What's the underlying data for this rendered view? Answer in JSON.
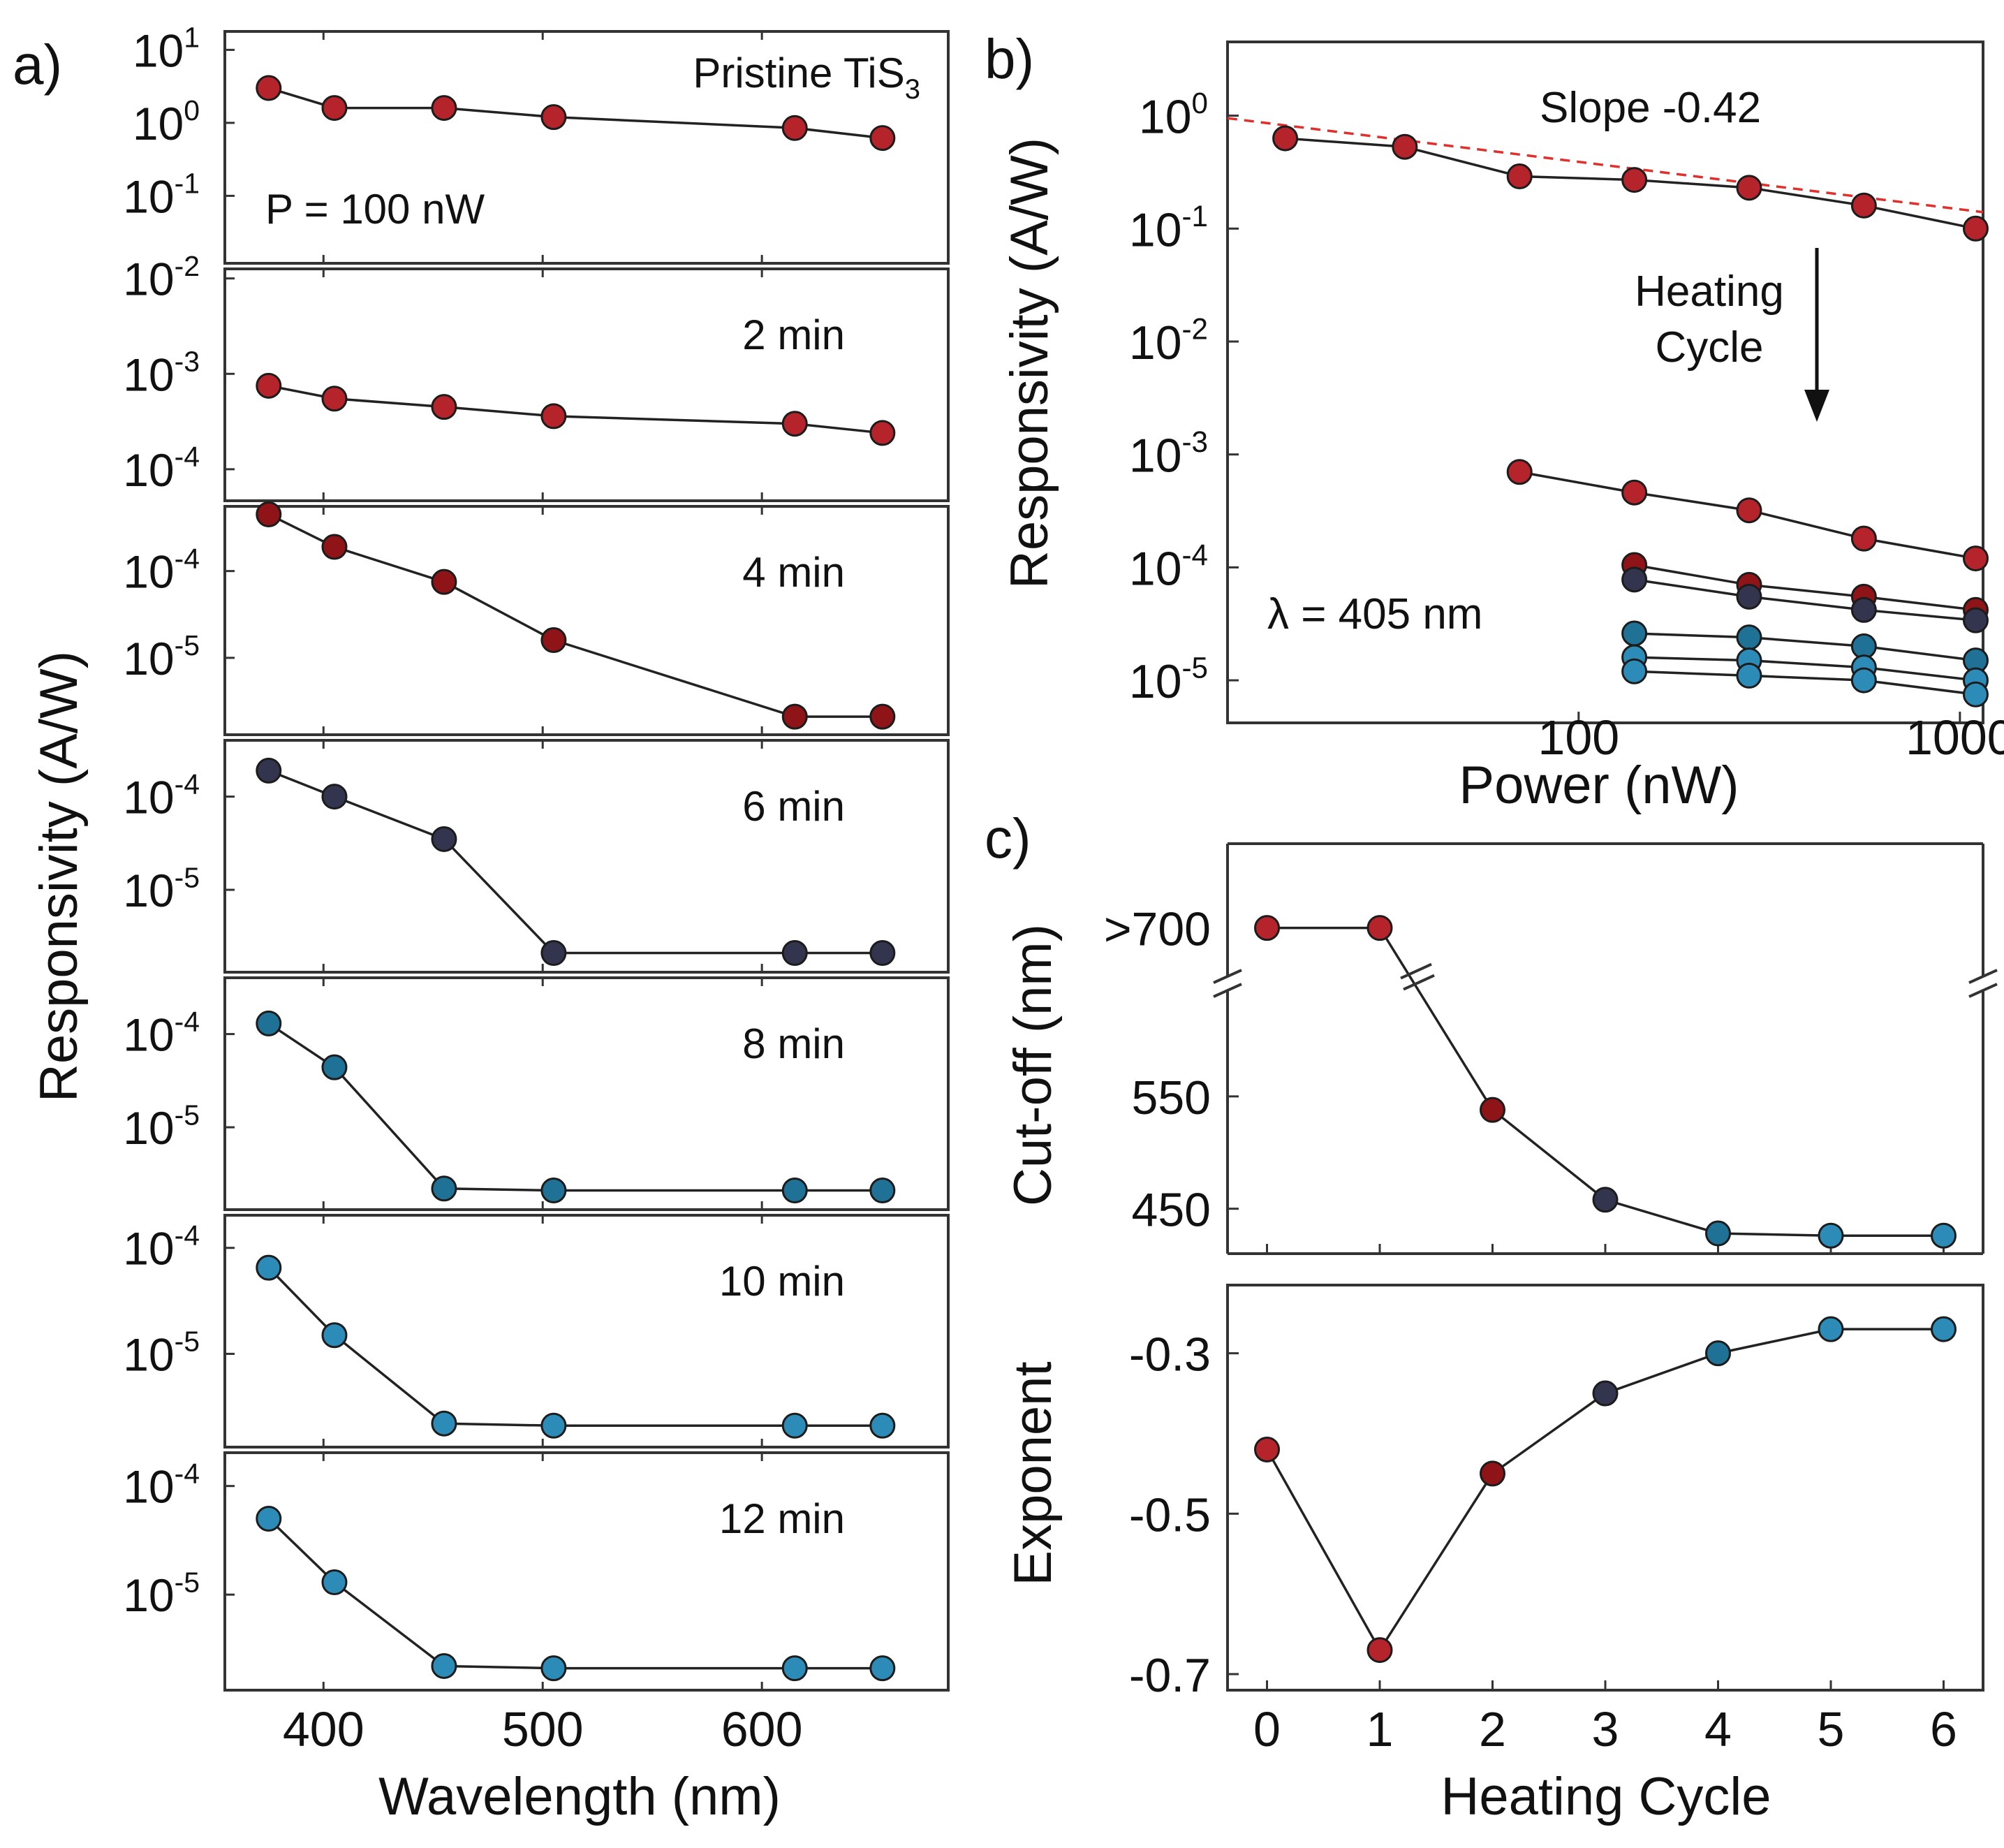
{
  "panel_labels": {
    "a": "a)",
    "b": "b)",
    "c": "c)"
  },
  "colors": {
    "red": "#b5232b",
    "darkred": "#8e1418",
    "navy": "#33344d",
    "teal": "#1f7296",
    "blue": "#2c8bb7",
    "line": "#222222",
    "fit": "#e0302c"
  },
  "chart_data": [
    {
      "id": "a",
      "type": "line",
      "xscale": "linear",
      "yscale": "log",
      "xlim": [
        355,
        685
      ],
      "xticks": [
        400,
        500,
        600
      ],
      "xtick_labels": [
        "400",
        "500",
        "600"
      ],
      "xlabel": "Wavelength (nm)",
      "ylabel": "Responsivity (A/W)",
      "x": [
        375,
        405,
        455,
        505,
        615,
        655
      ],
      "subplots": [
        {
          "label": "Pristine TiS",
          "label_sub": "3",
          "note": "P = 100 nW",
          "color": "red",
          "ylim": [
            0.013,
            15
          ],
          "ytick_values": [
            10,
            1,
            0.1
          ],
          "ytick_base": [
            "10",
            "10",
            "10"
          ],
          "ytick_exp": [
            "1",
            "0",
            "-1"
          ],
          "y": [
            3.0,
            1.6,
            1.6,
            1.2,
            0.85,
            0.62
          ]
        },
        {
          "label": "2 min",
          "color": "red",
          "ylim": [
            5e-05,
            0.011
          ],
          "ytick_values": [
            0.01,
            0.001,
            0.0001
          ],
          "ytick_base": [
            "10",
            "10",
            "10"
          ],
          "ytick_exp": [
            "-2",
            "-3",
            "-4"
          ],
          "y": [
            0.00075,
            0.00055,
            0.00045,
            0.00036,
            0.0003,
            0.00024
          ]
        },
        {
          "label": "4 min",
          "color": "darkred",
          "ylim": [
            1.4e-06,
            0.00048
          ],
          "ytick_values": [
            0.0001,
            1e-05
          ],
          "ytick_base": [
            "10",
            "10"
          ],
          "ytick_exp": [
            "-4",
            "-5"
          ],
          "y": [
            0.00045,
            0.00019,
            7.5e-05,
            1.6e-05,
            2.1e-06,
            2.1e-06
          ]
        },
        {
          "label": "6 min",
          "color": "navy",
          "ylim": [
            1.4e-06,
            0.00035
          ],
          "ytick_values": [
            0.0001,
            1e-05
          ],
          "ytick_base": [
            "10",
            "10"
          ],
          "ytick_exp": [
            "-4",
            "-5"
          ],
          "y": [
            0.00019,
            0.0001,
            3.5e-05,
            2.1e-06,
            2.1e-06,
            2.1e-06
          ]
        },
        {
          "label": "8 min",
          "color": "teal",
          "ylim": [
            1.4e-06,
            0.00035
          ],
          "ytick_values": [
            0.0001,
            1e-05
          ],
          "ytick_base": [
            "10",
            "10"
          ],
          "ytick_exp": [
            "-4",
            "-5"
          ],
          "y": [
            0.00013,
            4.4e-05,
            2.2e-06,
            2.1e-06,
            2.1e-06,
            2.1e-06
          ]
        },
        {
          "label": "10 min",
          "color": "blue",
          "ylim": [
            1.4e-06,
            0.00018
          ],
          "ytick_values": [
            0.0001,
            1e-05
          ],
          "ytick_base": [
            "10",
            "10"
          ],
          "ytick_exp": [
            "-4",
            "-5"
          ],
          "y": [
            6.5e-05,
            1.5e-05,
            2.2e-06,
            2.1e-06,
            2.1e-06,
            2.1e-06
          ]
        },
        {
          "label": "12 min",
          "color": "blue",
          "ylim": [
            1.4e-06,
            0.00018
          ],
          "ytick_values": [
            0.0001,
            1e-05
          ],
          "ytick_base": [
            "10",
            "10"
          ],
          "ytick_exp": [
            "-4",
            "-5"
          ],
          "y": [
            5e-05,
            1.3e-05,
            2.2e-06,
            2.1e-06,
            2.1e-06,
            2.1e-06
          ]
        }
      ]
    },
    {
      "id": "b",
      "type": "line",
      "xscale": "log",
      "yscale": "log",
      "xlim": [
        12,
        1150
      ],
      "ylim": [
        4.2e-06,
        4.5
      ],
      "xticks": [
        100,
        1000
      ],
      "xtick_labels": [
        "100",
        "1000"
      ],
      "ytick_values": [
        1,
        0.1,
        0.01,
        0.001,
        0.0001,
        1e-05
      ],
      "ytick_base": [
        "10",
        "10",
        "10",
        "10",
        "10",
        "10"
      ],
      "ytick_exp": [
        "0",
        "-1",
        "-2",
        "-3",
        "-4",
        "-5"
      ],
      "xlabel": "Power (nW)",
      "ylabel": "Responsivity (A/W)",
      "annotations": {
        "slope": "Slope -0.42",
        "arrow_line1": "Heating",
        "arrow_line2": "Cycle",
        "wavelength": "λ = 405 nm"
      },
      "fit": {
        "slope": -0.42,
        "x0": 12,
        "y0": 0.95,
        "x1": 1150
      },
      "series": [
        {
          "name": "pristine",
          "color": "red",
          "x": [
            17,
            35,
            70,
            140,
            280,
            560,
            1100
          ],
          "y": [
            0.63,
            0.53,
            0.29,
            0.27,
            0.23,
            0.16,
            0.1
          ]
        },
        {
          "name": "cycle 1",
          "color": "red",
          "x": [
            70,
            140,
            280,
            560,
            1100
          ],
          "y": [
            0.0007,
            0.00046,
            0.00032,
            0.00018,
            0.00012
          ]
        },
        {
          "name": "cycle 2",
          "color": "darkred",
          "x": [
            140,
            280,
            560,
            1100
          ],
          "y": [
            0.000105,
            7e-05,
            5.5e-05,
            4.2e-05
          ]
        },
        {
          "name": "cycle 3",
          "color": "navy",
          "x": [
            140,
            280,
            560,
            1100
          ],
          "y": [
            7.8e-05,
            5.5e-05,
            4.2e-05,
            3.4e-05
          ]
        },
        {
          "name": "cycle 4",
          "color": "teal",
          "x": [
            140,
            280,
            560,
            1100
          ],
          "y": [
            2.6e-05,
            2.4e-05,
            2e-05,
            1.5e-05
          ]
        },
        {
          "name": "cycle 5",
          "color": "blue",
          "x": [
            140,
            280,
            560,
            1100
          ],
          "y": [
            1.6e-05,
            1.5e-05,
            1.3e-05,
            1e-05
          ]
        },
        {
          "name": "cycle 6",
          "color": "blue",
          "x": [
            140,
            280,
            560,
            1100
          ],
          "y": [
            1.2e-05,
            1.1e-05,
            1e-05,
            7.5e-06
          ]
        }
      ]
    },
    {
      "id": "c-top",
      "type": "line",
      "xlim": [
        -0.35,
        6.35
      ],
      "ylim": [
        410,
        775
      ],
      "xticks": [
        0,
        1,
        2,
        3,
        4,
        5,
        6
      ],
      "yticks": [
        450,
        550
      ],
      "ytick_labels": [
        "450",
        "550"
      ],
      "break_label": ">700",
      "break_value": 700,
      "break_gap_y": 650,
      "ylabel": "Cut-off (nm)",
      "x": [
        0,
        1,
        2,
        3,
        4,
        5,
        6
      ],
      "y": [
        700,
        700,
        538,
        458,
        428,
        426,
        426
      ],
      "colors": [
        "red",
        "red",
        "darkred",
        "navy",
        "teal",
        "blue",
        "blue"
      ]
    },
    {
      "id": "c-bottom",
      "type": "line",
      "xlim": [
        -0.35,
        6.35
      ],
      "ylim": [
        -0.72,
        -0.215
      ],
      "xticks": [
        0,
        1,
        2,
        3,
        4,
        5,
        6
      ],
      "xtick_labels": [
        "0",
        "1",
        "2",
        "3",
        "4",
        "5",
        "6"
      ],
      "yticks": [
        -0.3,
        -0.5,
        -0.7
      ],
      "ytick_labels": [
        "-0.3",
        "-0.5",
        "-0.7"
      ],
      "xlabel": "Heating Cycle",
      "ylabel": "Exponent",
      "x": [
        0,
        1,
        2,
        3,
        4,
        5,
        6
      ],
      "y": [
        -0.42,
        -0.67,
        -0.45,
        -0.35,
        -0.3,
        -0.27,
        -0.27
      ],
      "colors": [
        "red",
        "red",
        "darkred",
        "navy",
        "teal",
        "blue",
        "blue"
      ]
    }
  ]
}
